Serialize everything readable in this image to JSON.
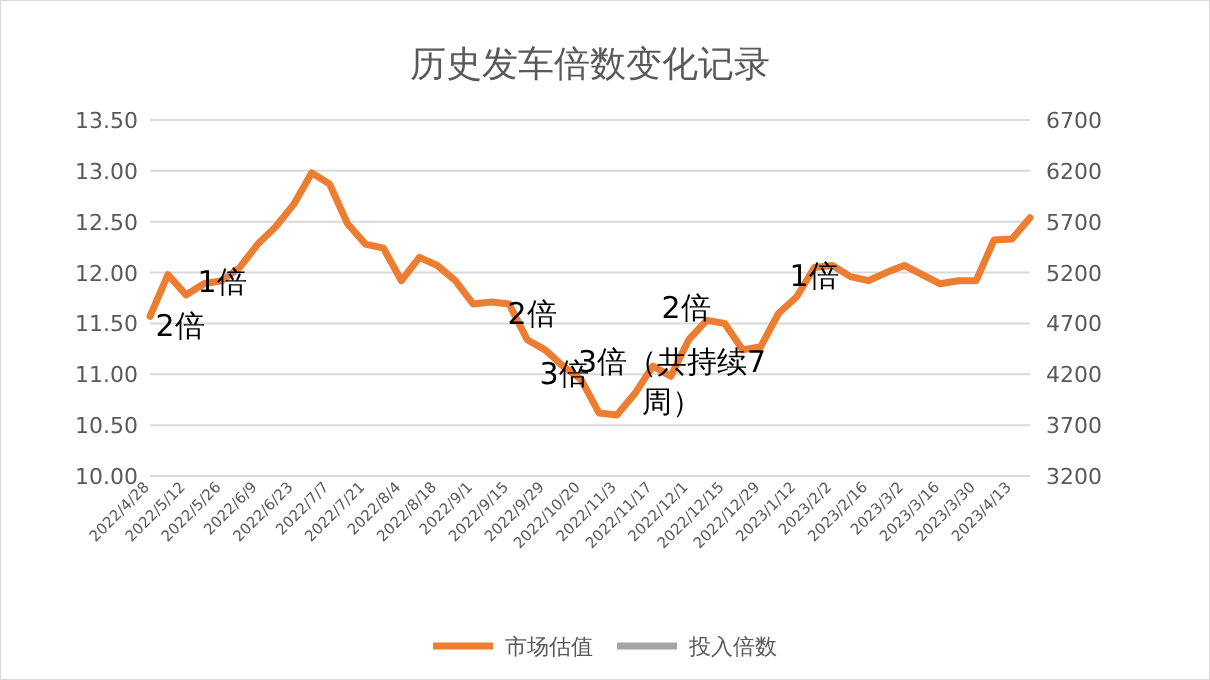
{
  "chart_data": {
    "type": "line",
    "title": "历史发车倍数变化记录",
    "categories": [
      "2022/4/28",
      null,
      "2022/5/12",
      null,
      "2022/5/26",
      null,
      "2022/6/9",
      null,
      "2022/6/23",
      null,
      "2022/7/7",
      null,
      "2022/7/21",
      null,
      "2022/8/4",
      null,
      "2022/8/18",
      null,
      "2022/9/1",
      null,
      "2022/9/15",
      null,
      "2022/9/29",
      null,
      "2022/10/20",
      null,
      "2022/11/3",
      null,
      "2022/11/17",
      null,
      "2022/12/1",
      null,
      "2022/12/15",
      null,
      "2022/12/29",
      null,
      "2023/1/12",
      null,
      "2023/2/2",
      null,
      "2023/2/16",
      null,
      "2023/3/2",
      null,
      "2023/3/16",
      null,
      "2023/3/30",
      null,
      "2023/4/13",
      null
    ],
    "series": [
      {
        "name": "市场估值",
        "color": "#ed7d31",
        "values": [
          11.57,
          11.98,
          11.78,
          11.89,
          11.92,
          12.05,
          12.28,
          12.45,
          12.67,
          12.98,
          12.87,
          12.48,
          12.28,
          12.24,
          11.92,
          12.15,
          12.07,
          11.92,
          11.69,
          11.71,
          11.69,
          11.34,
          11.24,
          11.08,
          10.95,
          10.62,
          10.6,
          10.81,
          11.08,
          10.98,
          11.34,
          11.53,
          11.5,
          11.24,
          11.27,
          11.6,
          11.76,
          12.05,
          12.07,
          11.96,
          11.92,
          12.0,
          12.07,
          11.98,
          11.89,
          11.92,
          11.92,
          12.32,
          12.33,
          12.54
        ]
      },
      {
        "name": "投入倍数",
        "color": "#a5a5a5",
        "values": [
          null,
          null,
          null,
          null,
          null,
          null,
          null,
          null,
          null,
          null,
          null,
          null,
          null,
          null,
          null,
          null,
          null,
          null,
          null,
          null,
          null,
          null,
          null,
          null,
          null,
          null,
          null,
          null,
          null,
          null,
          null,
          null,
          null,
          null,
          null,
          null,
          null,
          null,
          null,
          null,
          null,
          null,
          null,
          null,
          null,
          null,
          null,
          null,
          null,
          null
        ]
      }
    ],
    "ylim": [
      10,
      13.5
    ],
    "yticks": [
      {
        "value": 10,
        "label": "10.00"
      },
      {
        "value": 10.5,
        "label": "10.50"
      },
      {
        "value": 11,
        "label": "11.00"
      },
      {
        "value": 11.5,
        "label": "11.50"
      },
      {
        "value": 12,
        "label": "12.00"
      },
      {
        "value": 12.5,
        "label": "12.50"
      },
      {
        "value": 13,
        "label": "13.00"
      },
      {
        "value": 13.5,
        "label": "13.50"
      }
    ],
    "y2lim": [
      3200,
      6700
    ],
    "y2ticks": [
      3200,
      3700,
      4200,
      4700,
      5200,
      5700,
      6200,
      6700
    ],
    "grid": "y",
    "legend": "bottom",
    "line_style": "solid",
    "marker": "none",
    "annotations": [
      "2倍",
      "1倍",
      "2倍",
      "3倍",
      "3倍（共持续7周）",
      "2倍",
      "1倍"
    ]
  }
}
